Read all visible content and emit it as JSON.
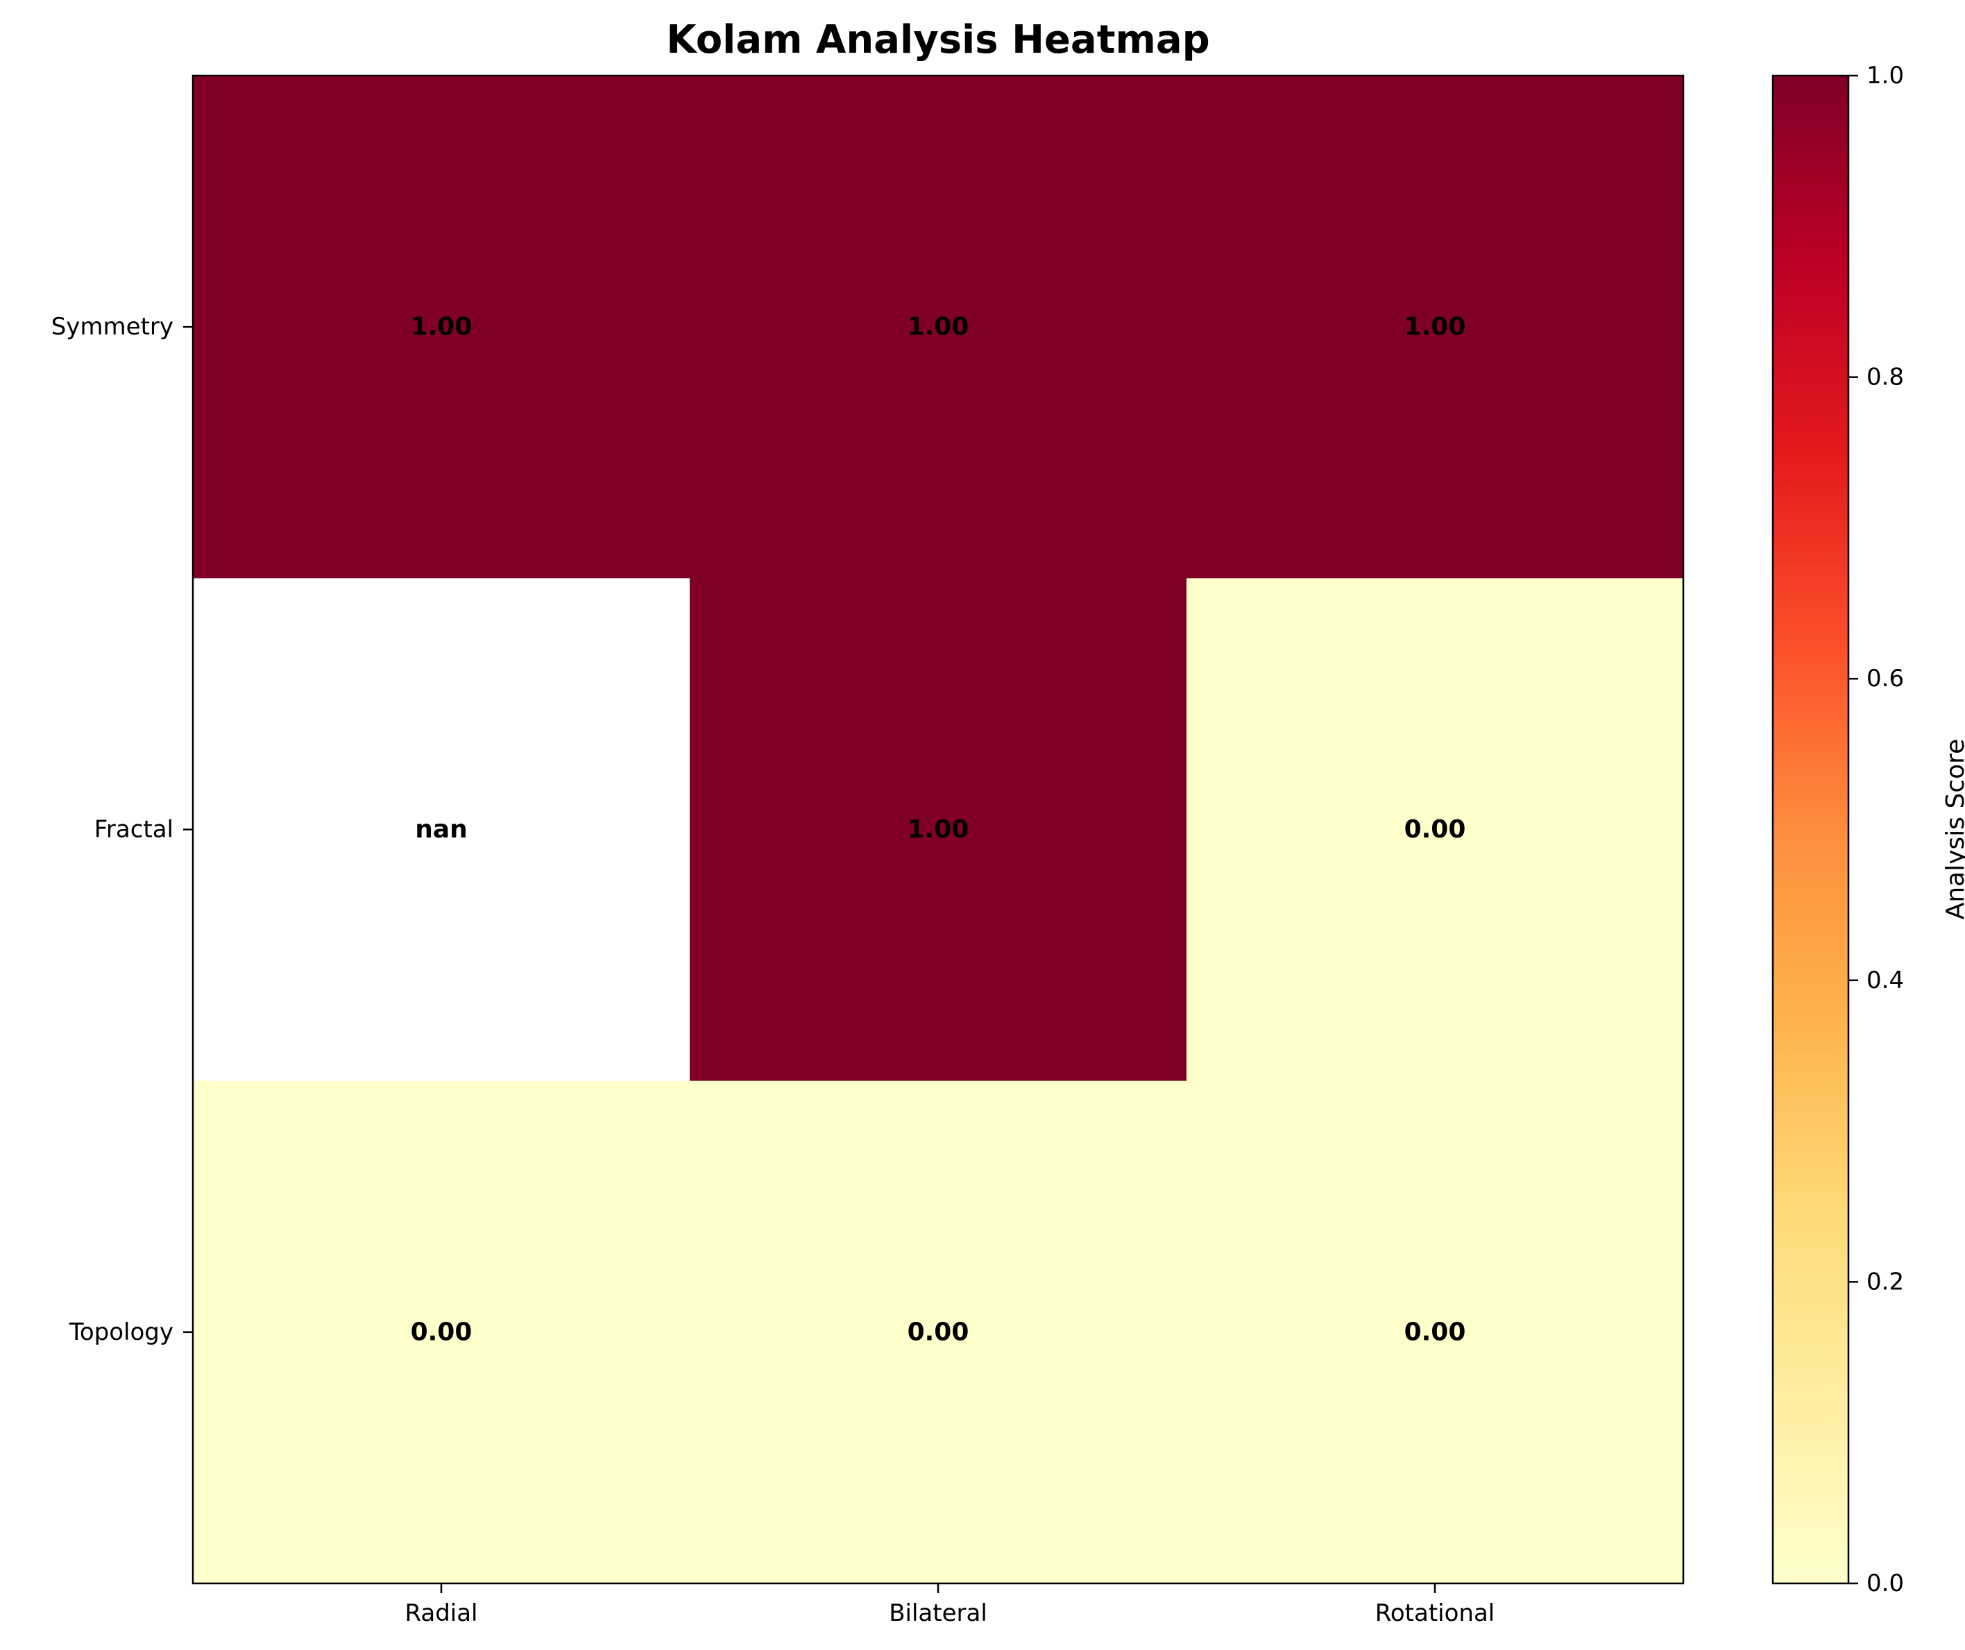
{
  "chart_data": {
    "type": "heatmap",
    "title": "Kolam Analysis Heatmap",
    "x_categories": [
      "Radial",
      "Bilateral",
      "Rotational"
    ],
    "y_categories": [
      "Symmetry",
      "Fractal",
      "Topology"
    ],
    "values": [
      [
        1.0,
        1.0,
        1.0
      ],
      [
        null,
        1.0,
        0.0
      ],
      [
        0.0,
        0.0,
        0.0
      ]
    ],
    "cell_labels": [
      [
        "1.00",
        "1.00",
        "1.00"
      ],
      [
        "nan",
        "1.00",
        "0.00"
      ],
      [
        "0.00",
        "0.00",
        "0.00"
      ]
    ],
    "colormap": "YlOrRd",
    "colormap_stops": [
      "#ffffcc",
      "#ffeda0",
      "#fed976",
      "#feb24c",
      "#fd8d3c",
      "#fc4e2a",
      "#e31a1c",
      "#bd0026",
      "#800026"
    ],
    "nan_color": "#ffffff",
    "vmin": 0.0,
    "vmax": 1.0,
    "colorbar": {
      "label": "Analysis Score",
      "ticks": [
        0.0,
        0.2,
        0.4,
        0.6,
        0.8,
        1.0
      ],
      "tick_labels": [
        "0.0",
        "0.2",
        "0.4",
        "0.6",
        "0.8",
        "1.0"
      ]
    }
  }
}
